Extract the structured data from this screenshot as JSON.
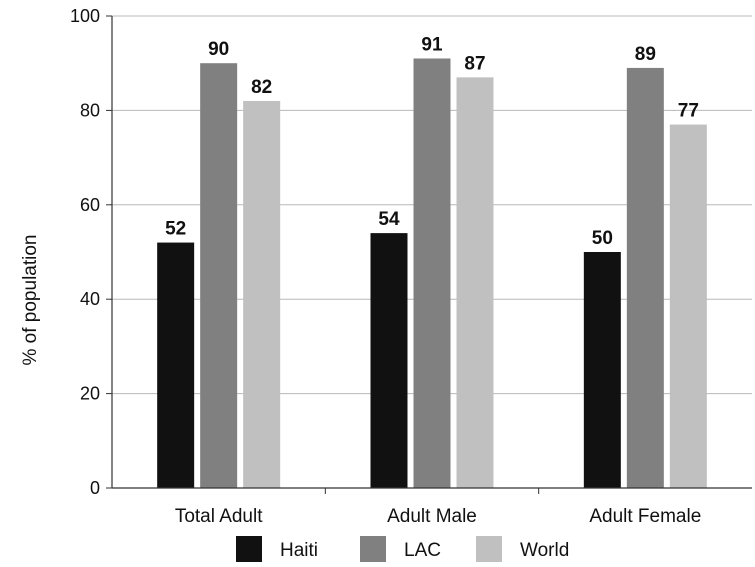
{
  "chart_data": {
    "type": "bar",
    "title": "",
    "xlabel": "",
    "ylabel": "% of population",
    "ylim": [
      0,
      100
    ],
    "yticks": [
      0,
      20,
      40,
      60,
      80,
      100
    ],
    "grid": true,
    "legend_position": "bottom",
    "categories": [
      "Total Adult",
      "Adult Male",
      "Adult Female"
    ],
    "series": [
      {
        "name": "Haiti",
        "color": "#111111",
        "values": [
          52,
          54,
          50
        ]
      },
      {
        "name": "LAC",
        "color": "#808080",
        "values": [
          90,
          91,
          89
        ]
      },
      {
        "name": "World",
        "color": "#c0c0c0",
        "values": [
          82,
          87,
          77
        ]
      }
    ]
  }
}
